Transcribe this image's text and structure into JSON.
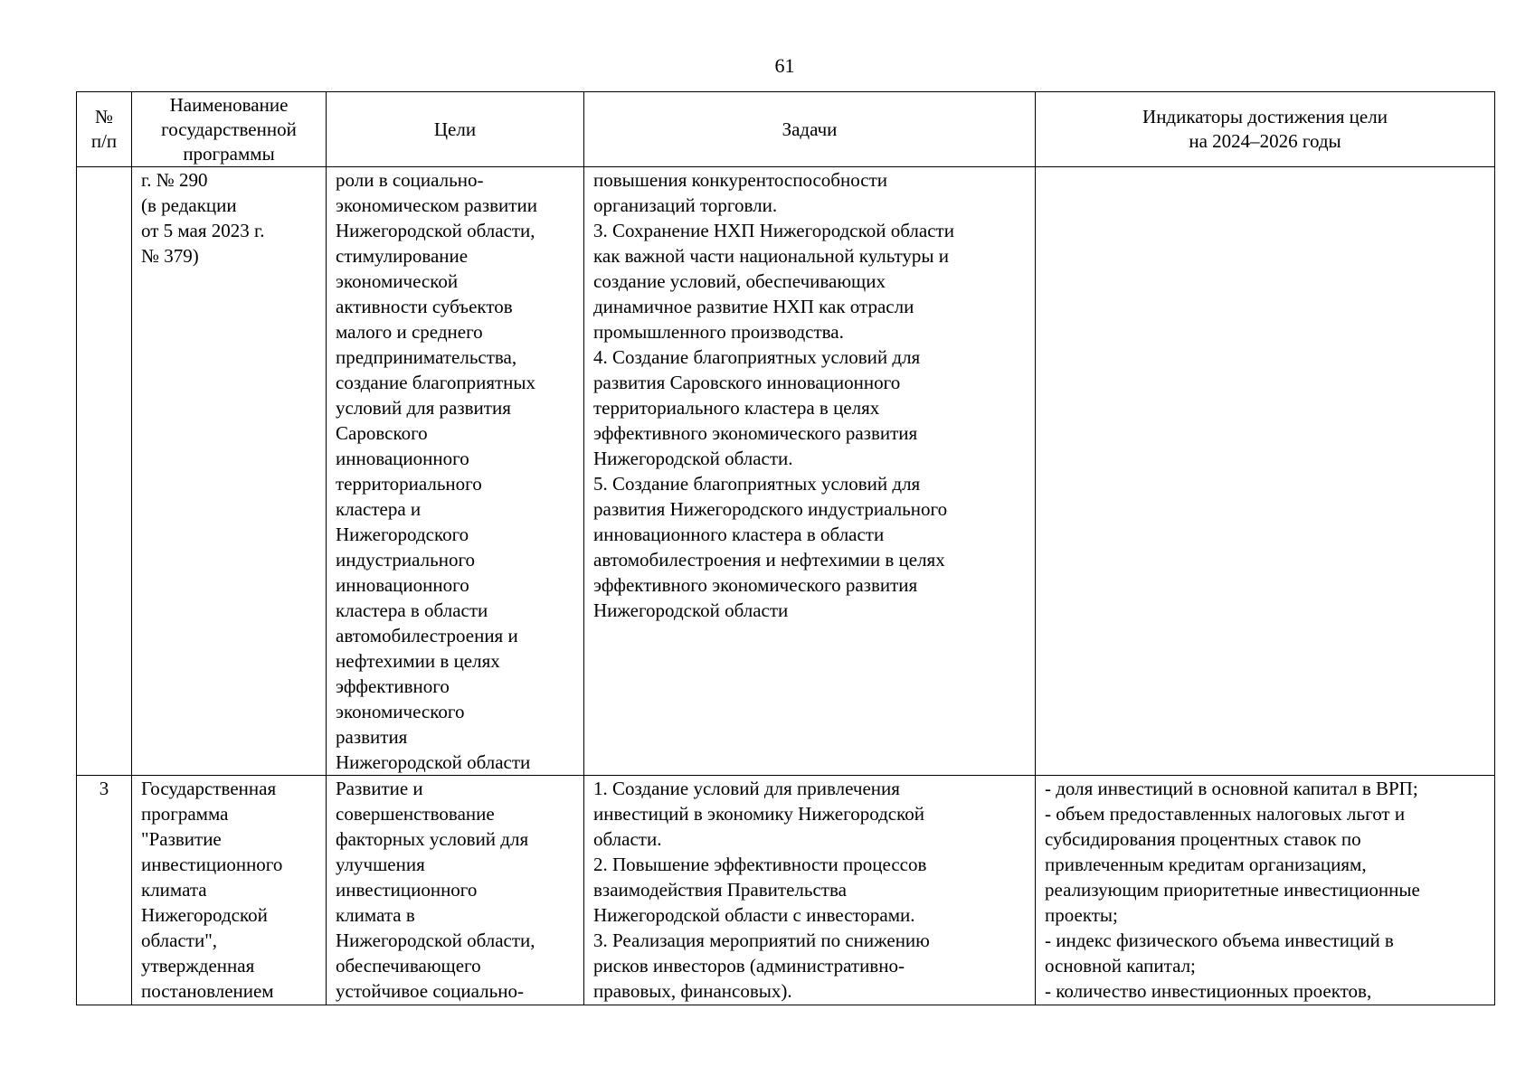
{
  "page_number": "61",
  "table": {
    "headers": [
      "№\nп/п",
      "Наименование\nгосударственной\nпрограммы",
      "Цели",
      "Задачи",
      "Индикаторы достижения цели\nна 2024–2026 годы"
    ],
    "rows": [
      {
        "num": "",
        "program": "г. № 290\n(в редакции\nот 5 мая 2023 г.\n№ 379)",
        "goals": "роли в социально-\nэкономическом развитии\nНижегородской области,\nстимулирование\nэкономической\nактивности субъектов\nмалого и среднего\nпредпринимательства,\nсоздание благоприятных\nусловий для развития\nСаровского\nинновационного\nтерриториального\nкластера и\nНижегородского\nиндустриального\nинновационного\nкластера в области\nавтомобилестроения и\nнефтехимии в целях\nэффективного\nэкономического\nразвития\nНижегородской области",
        "tasks": "повышения конкурентоспособности\nорганизаций торговли.\n3. Сохранение НХП Нижегородской области\nкак важной части национальной культуры и\nсоздание условий, обеспечивающих\nдинамичное развитие НХП как отрасли\nпромышленного производства.\n4. Создание благоприятных условий для\nразвития Саровского инновационного\nтерриториального кластера в целях\nэффективного экономического развития\nНижегородской области.\n5. Создание благоприятных условий для\nразвития Нижегородского индустриального\nинновационного кластера в области\nавтомобилестроения и нефтехимии в целях\nэффективного экономического развития\nНижегородской области",
        "indicators": ""
      },
      {
        "num": "3",
        "program": "Государственная\nпрограмма\n\"Развитие\nинвестиционного\nклимата\nНижегородской\nобласти\",\nутвержденная\nпостановлением",
        "goals": "Развитие и\nсовершенствование\nфакторных условий для\nулучшения\nинвестиционного\nклимата в\nНижегородской области,\nобеспечивающего\nустойчивое социально-",
        "tasks": "1. Создание условий для привлечения\nинвестиций в экономику Нижегородской\nобласти.\n2. Повышение эффективности процессов\nвзаимодействия Правительства\nНижегородской области с инвесторами.\n3. Реализация мероприятий по снижению\nрисков инвесторов (административно-\nправовых, финансовых).",
        "indicators": "- доля инвестиций в основной капитал в ВРП;\n- объем предоставленных налоговых льгот и\nсубсидирования процентных ставок по\nпривлеченным кредитам организациям,\nреализующим приоритетные инвестиционные\nпроекты;\n- индекс физического объема инвестиций в\nосновной капитал;\n- количество инвестиционных проектов,"
      }
    ]
  }
}
